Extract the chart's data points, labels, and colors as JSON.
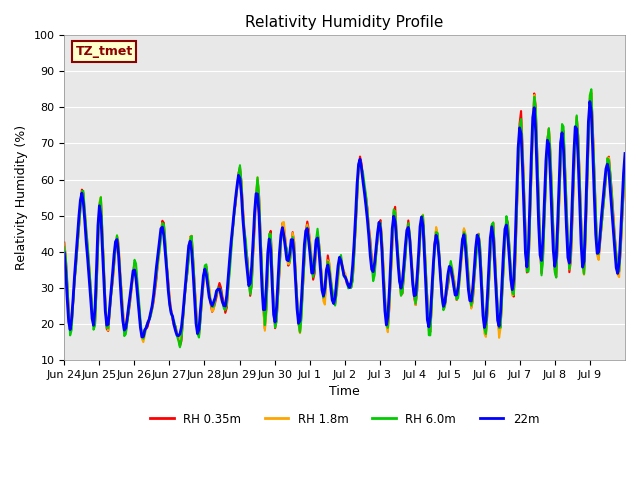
{
  "title": "Relativity Humidity Profile",
  "xlabel": "Time",
  "ylabel": "Relativity Humidity (%)",
  "ylim": [
    10,
    100
  ],
  "annotation": "TZ_tmet",
  "annotation_color": "#8B0000",
  "annotation_bg": "#FFFFCC",
  "bg_color": "#E8E8E8",
  "line_colors": {
    "RH 0.35m": "#FF0000",
    "RH 1.8m": "#FFA500",
    "RH 6.0m": "#00CC00",
    "22m": "#0000FF"
  },
  "legend_labels": [
    "RH 0.35m",
    "RH 1.8m",
    "RH 6.0m",
    "22m"
  ],
  "x_tick_labels": [
    "Jun 24",
    "Jun 25",
    "Jun 26",
    "Jun 27",
    "Jun 28",
    "Jun 29",
    "Jun 30",
    "Jul 1",
    "Jul 2",
    "Jul 3",
    "Jul 4",
    "Jul 5",
    "Jul 6",
    "Jul 7",
    "Jul 8",
    "Jul 9"
  ],
  "n_ticks": 16,
  "ctrl_x": [
    0,
    0.15,
    0.5,
    0.85,
    1.0,
    1.2,
    1.5,
    1.7,
    2.0,
    2.2,
    2.5,
    2.8,
    3.0,
    3.3,
    3.6,
    3.8,
    4.0,
    4.2,
    4.4,
    4.6,
    4.8,
    5.0,
    5.1,
    5.3,
    5.5,
    5.7,
    5.85,
    6.0,
    6.2,
    6.4,
    6.5,
    6.7,
    6.9,
    7.1,
    7.2,
    7.4,
    7.5,
    7.7,
    7.85,
    8.0,
    8.2,
    8.4,
    8.6,
    8.8,
    9.0,
    9.2,
    9.4,
    9.6,
    9.8,
    10.0,
    10.2,
    10.4,
    10.6,
    10.8,
    11.0,
    11.2,
    11.4,
    11.6,
    11.8,
    12.0,
    12.2,
    12.4,
    12.6,
    12.8,
    13.0,
    13.2,
    13.4,
    13.6,
    13.8,
    14.0,
    14.2,
    14.4,
    14.6,
    14.8,
    15.0,
    15.2,
    15.5,
    15.8,
    16.0
  ],
  "ctrl_y": [
    42,
    15,
    60,
    15,
    60,
    15,
    47,
    15,
    38,
    15,
    24,
    50,
    24,
    14,
    47,
    14,
    38,
    23,
    31,
    23,
    48,
    65,
    48,
    26,
    65,
    14,
    50,
    14,
    50,
    34,
    48,
    14,
    50,
    31,
    48,
    23,
    40,
    23,
    40,
    32,
    30,
    67,
    55,
    30,
    52,
    14,
    55,
    25,
    50,
    22,
    54,
    14,
    50,
    22,
    38,
    26,
    48,
    22,
    48,
    13,
    52,
    13,
    53,
    22,
    84,
    28,
    90,
    28,
    80,
    28,
    80,
    29,
    83,
    28,
    90,
    35,
    68,
    30,
    70
  ],
  "yticks": [
    10,
    20,
    30,
    40,
    50,
    60,
    70,
    80,
    90,
    100
  ]
}
